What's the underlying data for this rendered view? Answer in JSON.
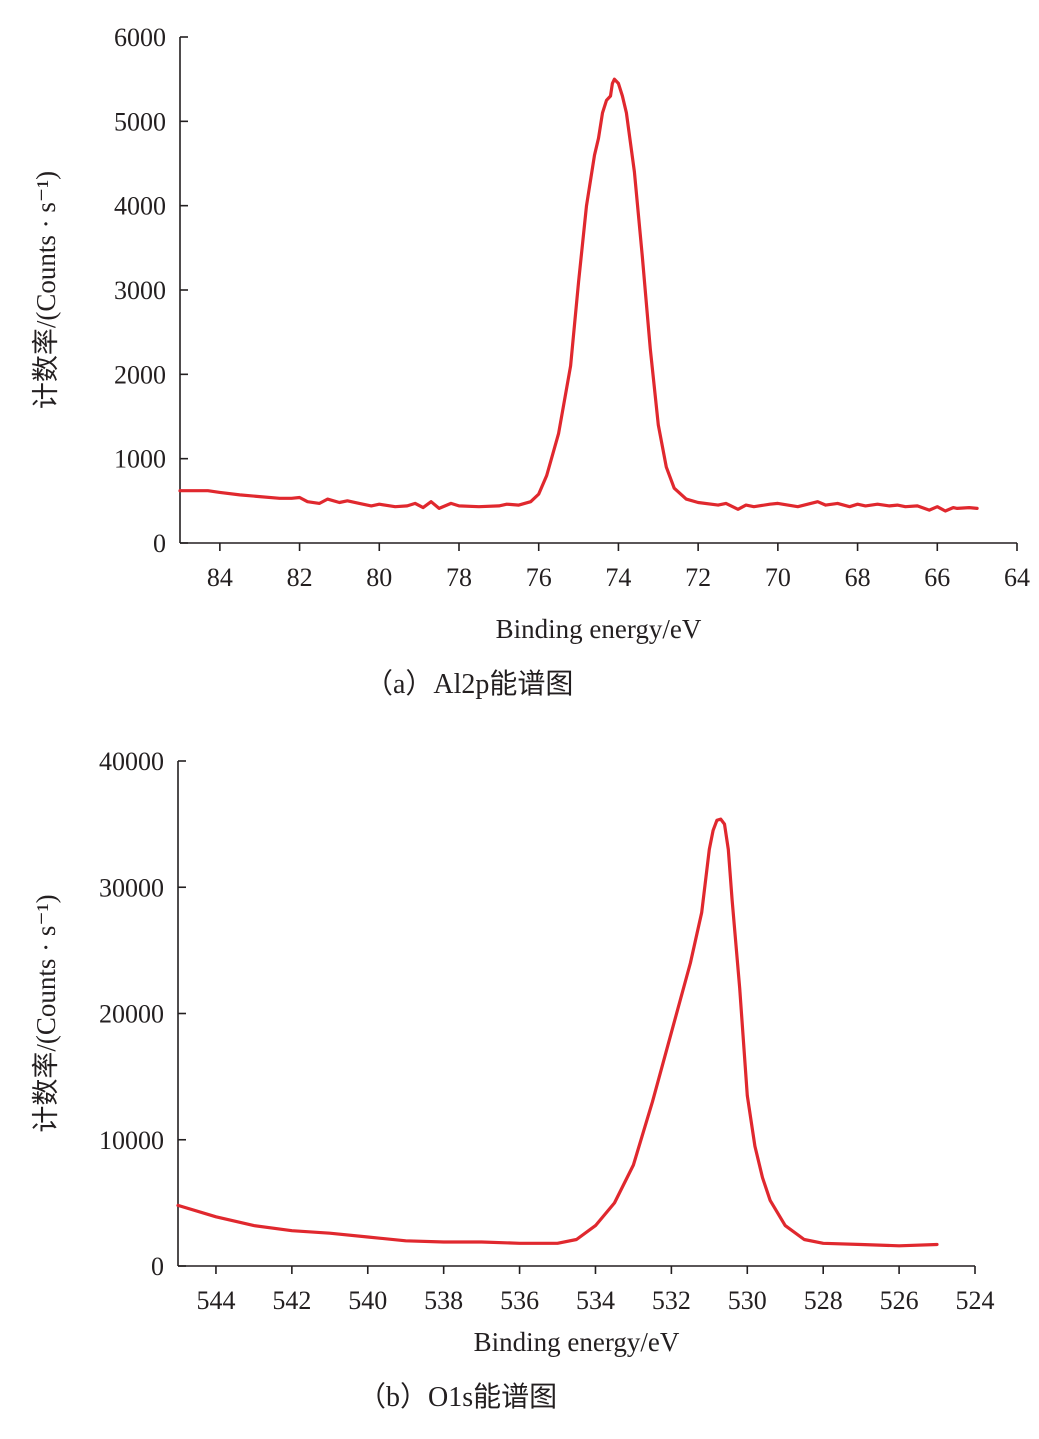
{
  "chart_data": [
    {
      "type": "line",
      "caption": "（a）Al2p能谱图",
      "xlabel": "Binding energy/eV",
      "ylabel": "计数率/(Counts · s⁻¹)",
      "xlim": [
        85,
        64
      ],
      "ylim": [
        0,
        6000
      ],
      "x_ticks": [
        84,
        82,
        80,
        78,
        76,
        74,
        72,
        70,
        68,
        66,
        64
      ],
      "y_ticks": [
        0,
        1000,
        2000,
        3000,
        4000,
        5000,
        6000
      ],
      "color": "#e0282e",
      "series": [
        {
          "x": [
            85.0,
            84.3,
            84.0,
            83.5,
            83.0,
            82.5,
            82.2,
            82.0,
            81.8,
            81.5,
            81.3,
            81.0,
            80.8,
            80.5,
            80.2,
            80.0,
            79.6,
            79.3,
            79.1,
            78.9,
            78.7,
            78.5,
            78.2,
            78.0,
            77.5,
            77.0,
            76.8,
            76.5,
            76.2,
            76.0,
            75.8,
            75.5,
            75.2,
            75.0,
            74.8,
            74.6,
            74.5,
            74.4,
            74.3,
            74.2,
            74.15,
            74.1,
            74.0,
            73.9,
            73.8,
            73.6,
            73.4,
            73.2,
            73.0,
            72.8,
            72.6,
            72.3,
            72.0,
            71.5,
            71.3,
            71.0,
            70.8,
            70.6,
            70.2,
            70.0,
            69.5,
            69.0,
            68.8,
            68.5,
            68.2,
            68.0,
            67.8,
            67.5,
            67.2,
            67.0,
            66.8,
            66.5,
            66.2,
            66.0,
            65.8,
            65.6,
            65.5,
            65.2,
            65.0
          ],
          "y": [
            620,
            620,
            600,
            570,
            550,
            530,
            530,
            540,
            490,
            470,
            520,
            480,
            500,
            470,
            440,
            460,
            430,
            440,
            470,
            420,
            490,
            410,
            470,
            440,
            430,
            440,
            460,
            450,
            490,
            580,
            800,
            1300,
            2100,
            3100,
            4000,
            4600,
            4800,
            5100,
            5250,
            5300,
            5450,
            5500,
            5450,
            5300,
            5100,
            4400,
            3400,
            2300,
            1400,
            900,
            650,
            520,
            480,
            450,
            470,
            400,
            450,
            430,
            460,
            470,
            430,
            490,
            450,
            470,
            430,
            460,
            440,
            460,
            440,
            450,
            430,
            440,
            390,
            430,
            380,
            420,
            410,
            420,
            410
          ]
        }
      ]
    },
    {
      "type": "line",
      "caption": "（b）O1s能谱图",
      "xlabel": "Binding energy/eV",
      "ylabel": "计数率/(Counts · s⁻¹)",
      "xlim": [
        545,
        524
      ],
      "ylim": [
        0,
        40000
      ],
      "x_ticks": [
        544,
        542,
        540,
        538,
        536,
        534,
        532,
        530,
        528,
        526,
        524
      ],
      "y_ticks": [
        0,
        10000,
        20000,
        30000,
        40000
      ],
      "color": "#e0282e",
      "series": [
        {
          "x": [
            545.0,
            544.0,
            543.0,
            542.0,
            541.0,
            540.0,
            539.0,
            538.0,
            537.0,
            536.0,
            535.5,
            535.0,
            534.5,
            534.0,
            533.5,
            533.0,
            532.5,
            532.0,
            531.5,
            531.2,
            531.0,
            530.9,
            530.8,
            530.7,
            530.6,
            530.5,
            530.4,
            530.2,
            530.0,
            529.8,
            529.6,
            529.4,
            529.0,
            528.5,
            528.0,
            527.0,
            526.0,
            525.0
          ],
          "y": [
            4800,
            3900,
            3200,
            2800,
            2600,
            2300,
            2000,
            1900,
            1900,
            1800,
            1800,
            1800,
            2100,
            3200,
            5000,
            8000,
            13000,
            18500,
            24000,
            28000,
            33000,
            34500,
            35300,
            35400,
            35000,
            33000,
            29000,
            22000,
            13500,
            9500,
            7000,
            5200,
            3200,
            2100,
            1800,
            1700,
            1600,
            1700
          ]
        }
      ]
    }
  ]
}
